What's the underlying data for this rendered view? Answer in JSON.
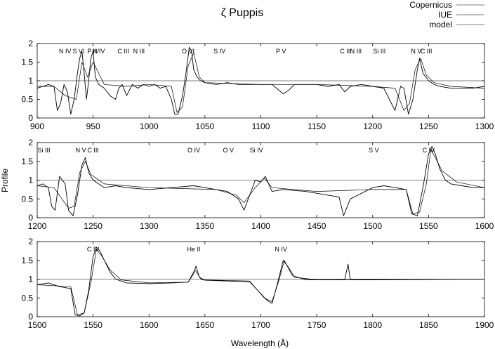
{
  "title": "ζ Puppis",
  "xlabel": "Wavelength (Å)",
  "ylabel": "Profile",
  "legend": {
    "placement": "top-right",
    "entries": [
      "Copernicus",
      "IUE",
      "model"
    ]
  },
  "chart_data": [
    {
      "type": "line",
      "panel": "top",
      "xlim": [
        900,
        1300
      ],
      "ylim": [
        0,
        2
      ],
      "xticks": [
        900,
        950,
        1000,
        1050,
        1100,
        1150,
        1200,
        1250,
        1300
      ],
      "yticks": [
        0,
        0.5,
        1,
        1.5,
        2
      ],
      "ytick_labels": [
        "0",
        "0.5",
        "1",
        "1.5",
        "2"
      ],
      "reference_line": 1,
      "series": [
        {
          "name": "Copernicus",
          "x": [
            900,
            905,
            910,
            915,
            918,
            921,
            924,
            927,
            930,
            933,
            936,
            938,
            940,
            942,
            944,
            946,
            948,
            950,
            952,
            955,
            960,
            965,
            970,
            973,
            976,
            980,
            985,
            990,
            995,
            1000,
            1005,
            1010,
            1015,
            1020,
            1023,
            1026,
            1030,
            1033,
            1036,
            1038,
            1040,
            1043,
            1046,
            1050,
            1060,
            1070,
            1080,
            1090,
            1100,
            1110,
            1120,
            1125,
            1130,
            1140,
            1150,
            1160,
            1170,
            1175,
            1180,
            1190,
            1200,
            1210,
            1215,
            1220,
            1225,
            1228,
            1232,
            1236,
            1240,
            1242,
            1245,
            1250,
            1255,
            1260,
            1270,
            1280,
            1290,
            1300
          ],
          "y": [
            0.8,
            0.85,
            0.9,
            0.85,
            0.2,
            0.4,
            0.9,
            0.7,
            0.1,
            0.5,
            1.2,
            1.6,
            1.8,
            1.2,
            0.5,
            1.0,
            1.6,
            1.8,
            1.1,
            0.9,
            0.8,
            0.6,
            0.5,
            0.8,
            0.9,
            0.6,
            0.9,
            0.8,
            0.9,
            0.85,
            0.9,
            0.8,
            0.85,
            0.5,
            0.1,
            0.1,
            0.6,
            1.2,
            1.9,
            1.8,
            1.3,
            1.1,
            1.0,
            0.95,
            0.9,
            0.95,
            0.9,
            0.9,
            0.9,
            0.9,
            0.65,
            0.75,
            0.9,
            0.9,
            0.9,
            0.85,
            0.9,
            0.7,
            0.85,
            0.9,
            0.85,
            0.8,
            0.5,
            0.2,
            0.85,
            0.8,
            0.1,
            0.5,
            1.3,
            1.6,
            1.2,
            1.0,
            0.9,
            0.85,
            0.8,
            0.8,
            0.8,
            0.85
          ]
        },
        {
          "name": "IUE",
          "x": [],
          "y": []
        },
        {
          "name": "model",
          "x": [
            900,
            915,
            925,
            935,
            940,
            945,
            950,
            960,
            980,
            1000,
            1020,
            1025,
            1030,
            1035,
            1040,
            1045,
            1050,
            1100,
            1150,
            1200,
            1220,
            1228,
            1233,
            1238,
            1243,
            1248,
            1255,
            1270,
            1300
          ],
          "y": [
            0.85,
            0.85,
            0.6,
            0.5,
            1.5,
            1.1,
            1.5,
            0.9,
            0.85,
            0.9,
            0.85,
            0.15,
            0.3,
            1.4,
            1.75,
            1.1,
            0.95,
            0.9,
            0.9,
            0.85,
            0.8,
            0.2,
            0.4,
            1.3,
            1.6,
            1.15,
            0.95,
            0.85,
            0.8
          ]
        }
      ],
      "annotations": [
        {
          "text": "N IV",
          "x": 925
        },
        {
          "text": "S VI",
          "x": 937
        },
        {
          "text": "P IV",
          "x": 950
        },
        {
          "text": "N IV",
          "x": 955
        },
        {
          "text": "C III",
          "x": 977
        },
        {
          "text": "N III",
          "x": 991
        },
        {
          "text": "O VI",
          "x": 1035
        },
        {
          "text": "S IV",
          "x": 1063
        },
        {
          "text": "P V",
          "x": 1118
        },
        {
          "text": "C III",
          "x": 1176
        },
        {
          "text": "N III",
          "x": 1185
        },
        {
          "text": "Si III",
          "x": 1206
        },
        {
          "text": "N V",
          "x": 1239
        },
        {
          "text": "C III",
          "x": 1248
        }
      ]
    },
    {
      "type": "line",
      "panel": "middle",
      "xlim": [
        1200,
        1600
      ],
      "ylim": [
        0,
        2
      ],
      "xticks": [
        1200,
        1250,
        1300,
        1350,
        1400,
        1450,
        1500,
        1550,
        1600
      ],
      "yticks": [
        0,
        0.5,
        1,
        1.5,
        2
      ],
      "ytick_labels": [
        "0",
        "0.5",
        "1",
        "1.5",
        "2"
      ],
      "reference_line": 1,
      "series": [
        {
          "name": "IUE",
          "x": [
            1200,
            1205,
            1210,
            1213,
            1216,
            1220,
            1225,
            1228,
            1232,
            1236,
            1240,
            1243,
            1246,
            1250,
            1255,
            1260,
            1270,
            1280,
            1300,
            1320,
            1340,
            1360,
            1370,
            1380,
            1385,
            1390,
            1395,
            1400,
            1404,
            1410,
            1420,
            1440,
            1460,
            1470,
            1474,
            1480,
            1500,
            1510,
            1520,
            1530,
            1535,
            1540,
            1545,
            1550,
            1553,
            1556,
            1560,
            1565,
            1570,
            1580,
            1590,
            1600
          ],
          "y": [
            0.85,
            0.9,
            0.8,
            0.3,
            0.2,
            1.1,
            0.9,
            0.2,
            0.05,
            0.6,
            1.4,
            1.6,
            1.2,
            1.0,
            0.9,
            0.8,
            0.85,
            0.8,
            0.75,
            0.8,
            0.85,
            0.75,
            0.7,
            0.5,
            0.2,
            0.6,
            1.0,
            0.95,
            1.1,
            0.7,
            0.75,
            0.7,
            0.6,
            0.55,
            0.05,
            0.5,
            0.8,
            0.85,
            0.8,
            0.75,
            0.1,
            0.05,
            0.8,
            1.7,
            1.9,
            1.7,
            1.3,
            1.0,
            0.9,
            0.85,
            0.8,
            0.8
          ]
        },
        {
          "name": "model",
          "x": [
            1200,
            1215,
            1228,
            1233,
            1238,
            1243,
            1248,
            1260,
            1300,
            1360,
            1378,
            1385,
            1395,
            1403,
            1410,
            1450,
            1500,
            1530,
            1536,
            1542,
            1548,
            1552,
            1556,
            1562,
            1575,
            1600
          ],
          "y": [
            0.85,
            0.8,
            0.25,
            0.3,
            1.2,
            1.5,
            1.15,
            0.9,
            0.8,
            0.75,
            0.6,
            0.4,
            0.8,
            1.05,
            0.8,
            0.7,
            0.75,
            0.75,
            0.1,
            0.15,
            0.9,
            1.8,
            1.6,
            1.25,
            0.95,
            0.8
          ]
        }
      ],
      "annotations": [
        {
          "text": "Si III",
          "x": 1206
        },
        {
          "text": "N V",
          "x": 1239
        },
        {
          "text": "C III",
          "x": 1250
        },
        {
          "text": "O IV",
          "x": 1340
        },
        {
          "text": "O V",
          "x": 1371
        },
        {
          "text": "Si IV",
          "x": 1396
        },
        {
          "text": "S V",
          "x": 1501
        },
        {
          "text": "C IV",
          "x": 1550
        }
      ]
    },
    {
      "type": "line",
      "panel": "bottom",
      "xlim": [
        1500,
        1900
      ],
      "ylim": [
        0,
        2
      ],
      "xticks": [
        1500,
        1550,
        1600,
        1650,
        1700,
        1750,
        1800,
        1850,
        1900
      ],
      "yticks": [
        0,
        0.5,
        1,
        1.5,
        2
      ],
      "ytick_labels": [
        "0",
        "0.5",
        "1",
        "1.5",
        "2"
      ],
      "reference_line": 1,
      "series": [
        {
          "name": "IUE",
          "x": [
            1500,
            1510,
            1520,
            1530,
            1534,
            1538,
            1542,
            1546,
            1550,
            1553,
            1556,
            1560,
            1565,
            1570,
            1580,
            1600,
            1620,
            1635,
            1640,
            1642,
            1645,
            1650,
            1670,
            1690,
            1705,
            1710,
            1715,
            1720,
            1725,
            1730,
            1750,
            1775,
            1778,
            1780,
            1800,
            1850,
            1900
          ],
          "y": [
            0.85,
            0.9,
            0.8,
            0.75,
            0.05,
            0.02,
            0.1,
            0.7,
            1.6,
            1.85,
            1.75,
            1.5,
            1.2,
            1.0,
            0.9,
            0.88,
            0.9,
            0.92,
            1.15,
            1.35,
            1.05,
            0.97,
            0.95,
            0.93,
            0.45,
            0.35,
            0.9,
            1.5,
            1.3,
            1.05,
            0.98,
            0.98,
            1.4,
            0.98,
            0.98,
            0.99,
            1.0
          ]
        },
        {
          "name": "model",
          "x": [
            1500,
            1530,
            1536,
            1542,
            1548,
            1553,
            1558,
            1565,
            1575,
            1600,
            1635,
            1641,
            1647,
            1690,
            1703,
            1710,
            1716,
            1721,
            1728,
            1740,
            1800,
            1900
          ],
          "y": [
            0.85,
            0.8,
            0.05,
            0.1,
            0.9,
            1.8,
            1.6,
            1.25,
            0.98,
            0.9,
            0.92,
            1.25,
            0.98,
            0.95,
            0.5,
            0.4,
            0.95,
            1.5,
            1.1,
            0.98,
            0.99,
            1.0
          ]
        }
      ],
      "annotations": [
        {
          "text": "C IV",
          "x": 1550
        },
        {
          "text": "He II",
          "x": 1640
        },
        {
          "text": "N IV",
          "x": 1718
        }
      ]
    }
  ]
}
